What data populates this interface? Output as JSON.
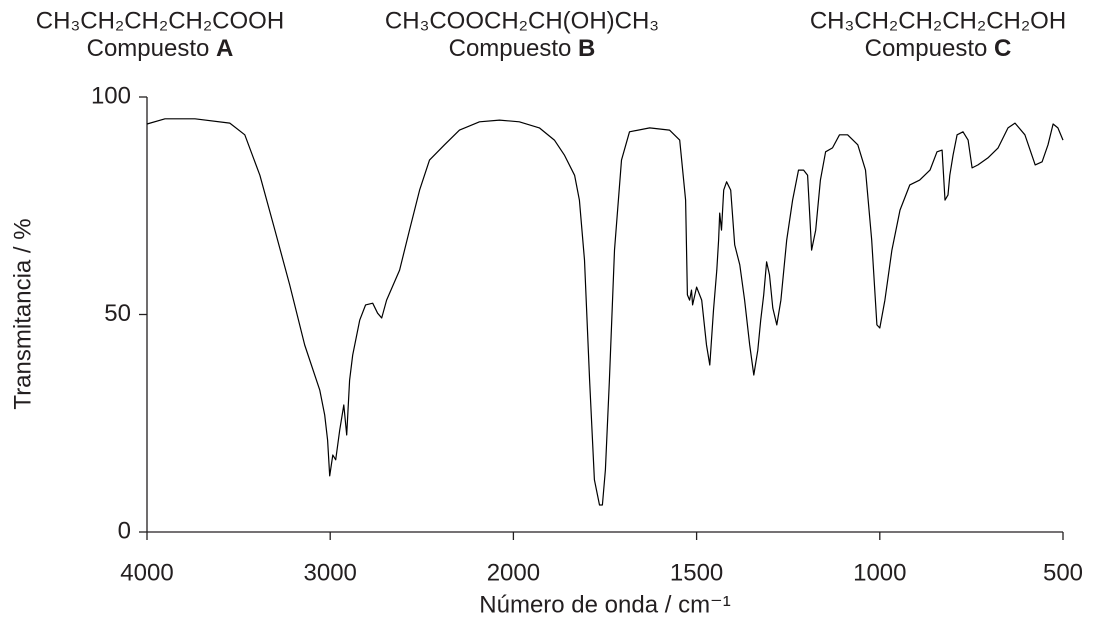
{
  "compounds": [
    {
      "formula": "CH₃CH₂CH₂CH₂COOH",
      "label": "Compuesto",
      "letter": "A"
    },
    {
      "formula": "CH₃COOCH₂CH(OH)CH₃",
      "label": "Compuesto",
      "letter": "B"
    },
    {
      "formula": "CH₃CH₂CH₂CH₂CH₂OH",
      "label": "Compuesto",
      "letter": "C"
    }
  ],
  "chart_data": {
    "type": "line",
    "xlabel": "Número de onda / cm⁻¹",
    "ylabel": "Transmitancia / %",
    "color": "#000000",
    "xlim": [
      4000,
      500
    ],
    "xticks": [
      4000,
      3000,
      2000,
      1500,
      1000,
      500
    ],
    "ylim": [
      0,
      100
    ],
    "yticks": [
      0,
      50,
      100
    ],
    "x": [
      4000,
      3902,
      3738,
      3548,
      3466,
      3384,
      3302,
      3221,
      3139,
      3057,
      3030,
      3014,
      3003,
      2986,
      2970,
      2948,
      2926,
      2910,
      2894,
      2877,
      2839,
      2807,
      2768,
      2741,
      2719,
      2692,
      2621,
      2567,
      2512,
      2458,
      2376,
      2294,
      2185,
      2076,
      1984,
      1929,
      1888,
      1861,
      1833,
      1820,
      1806,
      1792,
      1779,
      1765,
      1757,
      1749,
      1738,
      1724,
      1705,
      1683,
      1628,
      1574,
      1546,
      1530,
      1525,
      1519,
      1514,
      1511,
      1500,
      1486,
      1473,
      1464,
      1454,
      1445,
      1440,
      1437,
      1432,
      1426,
      1418,
      1407,
      1396,
      1382,
      1369,
      1355,
      1344,
      1333,
      1325,
      1317,
      1309,
      1301,
      1292,
      1281,
      1270,
      1254,
      1238,
      1222,
      1208,
      1197,
      1186,
      1175,
      1162,
      1148,
      1129,
      1110,
      1088,
      1060,
      1039,
      1022,
      1008,
      1000,
      986,
      967,
      945,
      918,
      891,
      863,
      844,
      830,
      822,
      814,
      809,
      800,
      789,
      773,
      759,
      748,
      732,
      705,
      677,
      650,
      631,
      604,
      576,
      557,
      541,
      527,
      514,
      500
    ],
    "values": [
      93.8,
      95,
      95,
      94,
      91.3,
      82,
      69.4,
      56.8,
      43,
      32.6,
      26.9,
      21.1,
      12.9,
      17.7,
      16.6,
      23.4,
      29.2,
      22.3,
      34.9,
      40.7,
      48.7,
      52.2,
      52.6,
      50.3,
      49.2,
      53.3,
      60.2,
      69.4,
      78.6,
      85.5,
      89,
      92.4,
      94.3,
      94.7,
      94.3,
      92.9,
      90.1,
      86.7,
      82,
      76.3,
      62.5,
      34.9,
      12,
      6.2,
      6.2,
      14.3,
      34.9,
      64.8,
      85.5,
      92,
      92.9,
      92.4,
      90.1,
      76.3,
      54.5,
      53.3,
      55.6,
      52.2,
      56.3,
      53.3,
      43,
      38.4,
      51,
      60.2,
      67.1,
      73.3,
      69.4,
      78.6,
      80.5,
      78.6,
      66,
      61.4,
      53.3,
      43,
      36.1,
      41.8,
      48.7,
      54.5,
      62.1,
      59.1,
      51.5,
      47.6,
      53.3,
      67.1,
      76.3,
      83.2,
      83.2,
      82,
      64.8,
      69.4,
      80.9,
      87.4,
      88.3,
      91.3,
      91.3,
      89,
      83.2,
      67.1,
      47.6,
      46.9,
      53.3,
      64.8,
      74,
      79.8,
      80.9,
      83.2,
      87.4,
      87.8,
      76.3,
      77.5,
      82,
      86.7,
      91.3,
      92,
      90.1,
      83.7,
      84.4,
      86,
      88.3,
      92.9,
      94,
      91.3,
      84.4,
      85.1,
      89,
      93.8,
      92.9,
      90.1
    ]
  }
}
